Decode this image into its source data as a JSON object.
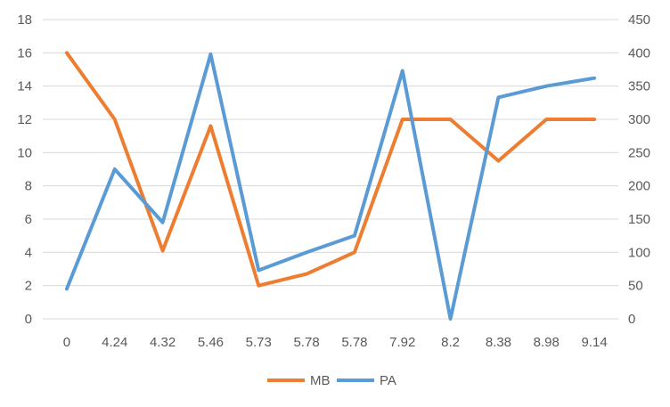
{
  "chart_data": {
    "type": "line",
    "categories": [
      "0",
      "4.24",
      "4.32",
      "5.46",
      "5.73",
      "5.78",
      "5.78",
      "7.92",
      "8.2",
      "8.38",
      "8.98",
      "9.14"
    ],
    "series": [
      {
        "name": "MB",
        "axis": "left",
        "color": "#ED7D31",
        "values": [
          16,
          12,
          4.1,
          11.6,
          2,
          2.7,
          4,
          12,
          12,
          9.5,
          12,
          12
        ]
      },
      {
        "name": "PA",
        "axis": "right",
        "color": "#5B9BD5",
        "values": [
          45,
          225,
          145,
          398,
          73,
          100,
          125,
          373,
          0,
          333,
          350,
          362
        ]
      }
    ],
    "y_left": {
      "min": 0,
      "max": 18,
      "step": 2,
      "ticks": [
        "0",
        "2",
        "4",
        "6",
        "8",
        "10",
        "12",
        "14",
        "16",
        "18"
      ]
    },
    "y_right": {
      "min": 0,
      "max": 450,
      "step": 50,
      "ticks": [
        "0",
        "50",
        "100",
        "150",
        "200",
        "250",
        "300",
        "350",
        "400",
        "450"
      ]
    },
    "grid": true,
    "legend": "bottom",
    "title": "",
    "xlabel": "",
    "ylabel": ""
  }
}
